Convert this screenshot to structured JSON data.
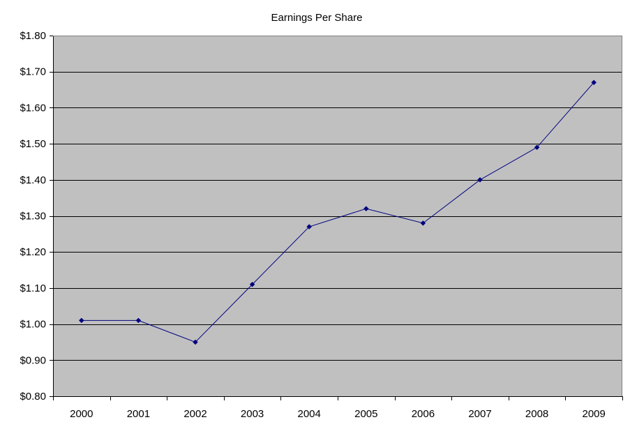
{
  "chart_data": {
    "type": "line",
    "title": "Earnings Per Share",
    "xlabel": "",
    "ylabel": "",
    "categories": [
      "2000",
      "2001",
      "2002",
      "2003",
      "2004",
      "2005",
      "2006",
      "2007",
      "2008",
      "2009"
    ],
    "series": [
      {
        "values": [
          1.01,
          1.01,
          0.95,
          1.11,
          1.27,
          1.32,
          1.28,
          1.4,
          1.49,
          1.67
        ],
        "color": "#000080"
      }
    ],
    "ylim": [
      0.8,
      1.8
    ],
    "yticks": [
      0.8,
      0.9,
      1.0,
      1.1,
      1.2,
      1.3,
      1.4,
      1.5,
      1.6,
      1.7,
      1.8
    ],
    "ytick_labels": [
      "$0.80",
      "$0.90",
      "$1.00",
      "$1.10",
      "$1.20",
      "$1.30",
      "$1.40",
      "$1.50",
      "$1.60",
      "$1.70",
      "$1.80"
    ],
    "grid": "horizontal",
    "legend": "none",
    "colors": {
      "plot_background": "#C0C0C0",
      "gridline": "#000000",
      "line": "#000080"
    }
  }
}
